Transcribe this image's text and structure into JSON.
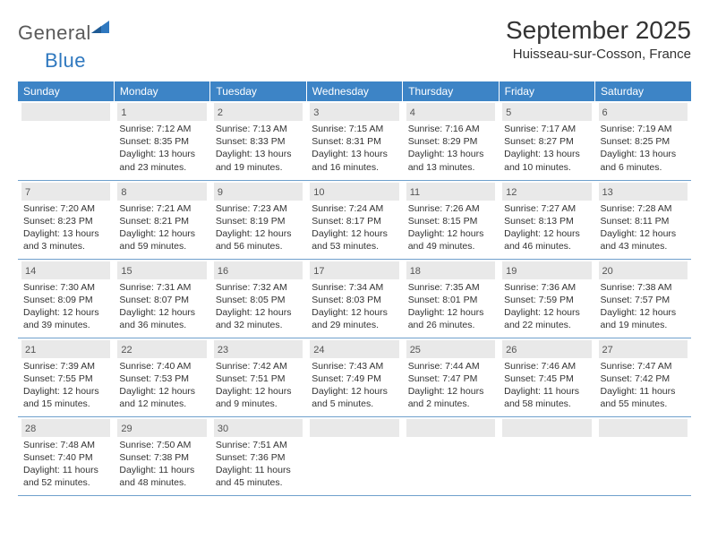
{
  "logo": {
    "part1": "General",
    "part2": "Blue"
  },
  "title": "September 2025",
  "location": "Huisseau-sur-Cosson, France",
  "colors": {
    "header_bg": "#3d84c6",
    "header_text": "#ffffff",
    "daynum_bg": "#e9e9e9",
    "border": "#6fa0cc",
    "text": "#333333",
    "logo_gray": "#5a5a5a",
    "logo_blue": "#2f78bf"
  },
  "weekdays": [
    "Sunday",
    "Monday",
    "Tuesday",
    "Wednesday",
    "Thursday",
    "Friday",
    "Saturday"
  ],
  "weeks": [
    [
      {
        "empty": true
      },
      {
        "day": "1",
        "sunrise": "7:12 AM",
        "sunset": "8:35 PM",
        "daylight": "13 hours and 23 minutes."
      },
      {
        "day": "2",
        "sunrise": "7:13 AM",
        "sunset": "8:33 PM",
        "daylight": "13 hours and 19 minutes."
      },
      {
        "day": "3",
        "sunrise": "7:15 AM",
        "sunset": "8:31 PM",
        "daylight": "13 hours and 16 minutes."
      },
      {
        "day": "4",
        "sunrise": "7:16 AM",
        "sunset": "8:29 PM",
        "daylight": "13 hours and 13 minutes."
      },
      {
        "day": "5",
        "sunrise": "7:17 AM",
        "sunset": "8:27 PM",
        "daylight": "13 hours and 10 minutes."
      },
      {
        "day": "6",
        "sunrise": "7:19 AM",
        "sunset": "8:25 PM",
        "daylight": "13 hours and 6 minutes."
      }
    ],
    [
      {
        "day": "7",
        "sunrise": "7:20 AM",
        "sunset": "8:23 PM",
        "daylight": "13 hours and 3 minutes."
      },
      {
        "day": "8",
        "sunrise": "7:21 AM",
        "sunset": "8:21 PM",
        "daylight": "12 hours and 59 minutes."
      },
      {
        "day": "9",
        "sunrise": "7:23 AM",
        "sunset": "8:19 PM",
        "daylight": "12 hours and 56 minutes."
      },
      {
        "day": "10",
        "sunrise": "7:24 AM",
        "sunset": "8:17 PM",
        "daylight": "12 hours and 53 minutes."
      },
      {
        "day": "11",
        "sunrise": "7:26 AM",
        "sunset": "8:15 PM",
        "daylight": "12 hours and 49 minutes."
      },
      {
        "day": "12",
        "sunrise": "7:27 AM",
        "sunset": "8:13 PM",
        "daylight": "12 hours and 46 minutes."
      },
      {
        "day": "13",
        "sunrise": "7:28 AM",
        "sunset": "8:11 PM",
        "daylight": "12 hours and 43 minutes."
      }
    ],
    [
      {
        "day": "14",
        "sunrise": "7:30 AM",
        "sunset": "8:09 PM",
        "daylight": "12 hours and 39 minutes."
      },
      {
        "day": "15",
        "sunrise": "7:31 AM",
        "sunset": "8:07 PM",
        "daylight": "12 hours and 36 minutes."
      },
      {
        "day": "16",
        "sunrise": "7:32 AM",
        "sunset": "8:05 PM",
        "daylight": "12 hours and 32 minutes."
      },
      {
        "day": "17",
        "sunrise": "7:34 AM",
        "sunset": "8:03 PM",
        "daylight": "12 hours and 29 minutes."
      },
      {
        "day": "18",
        "sunrise": "7:35 AM",
        "sunset": "8:01 PM",
        "daylight": "12 hours and 26 minutes."
      },
      {
        "day": "19",
        "sunrise": "7:36 AM",
        "sunset": "7:59 PM",
        "daylight": "12 hours and 22 minutes."
      },
      {
        "day": "20",
        "sunrise": "7:38 AM",
        "sunset": "7:57 PM",
        "daylight": "12 hours and 19 minutes."
      }
    ],
    [
      {
        "day": "21",
        "sunrise": "7:39 AM",
        "sunset": "7:55 PM",
        "daylight": "12 hours and 15 minutes."
      },
      {
        "day": "22",
        "sunrise": "7:40 AM",
        "sunset": "7:53 PM",
        "daylight": "12 hours and 12 minutes."
      },
      {
        "day": "23",
        "sunrise": "7:42 AM",
        "sunset": "7:51 PM",
        "daylight": "12 hours and 9 minutes."
      },
      {
        "day": "24",
        "sunrise": "7:43 AM",
        "sunset": "7:49 PM",
        "daylight": "12 hours and 5 minutes."
      },
      {
        "day": "25",
        "sunrise": "7:44 AM",
        "sunset": "7:47 PM",
        "daylight": "12 hours and 2 minutes."
      },
      {
        "day": "26",
        "sunrise": "7:46 AM",
        "sunset": "7:45 PM",
        "daylight": "11 hours and 58 minutes."
      },
      {
        "day": "27",
        "sunrise": "7:47 AM",
        "sunset": "7:42 PM",
        "daylight": "11 hours and 55 minutes."
      }
    ],
    [
      {
        "day": "28",
        "sunrise": "7:48 AM",
        "sunset": "7:40 PM",
        "daylight": "11 hours and 52 minutes."
      },
      {
        "day": "29",
        "sunrise": "7:50 AM",
        "sunset": "7:38 PM",
        "daylight": "11 hours and 48 minutes."
      },
      {
        "day": "30",
        "sunrise": "7:51 AM",
        "sunset": "7:36 PM",
        "daylight": "11 hours and 45 minutes."
      },
      {
        "empty": true
      },
      {
        "empty": true
      },
      {
        "empty": true
      },
      {
        "empty": true
      }
    ]
  ],
  "labels": {
    "sunrise_prefix": "Sunrise: ",
    "sunset_prefix": "Sunset: ",
    "daylight_prefix": "Daylight: "
  }
}
